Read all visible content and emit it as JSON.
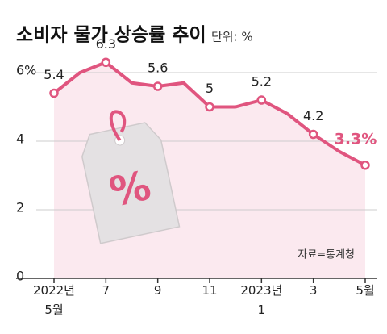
{
  "chart_data": {
    "type": "line",
    "title": "소비자 물가 상승률 추이",
    "subtitle": "단위: %",
    "annotation": "자료=통계청",
    "categories": [
      "2022년\n5월",
      null,
      "7",
      null,
      "9",
      null,
      "11",
      null,
      "2023년\n1",
      null,
      "3",
      null,
      "5월"
    ],
    "series": [
      {
        "name": "소비자 물가 상승률",
        "color": "#e0557f",
        "values": [
          5.4,
          6.0,
          6.3,
          5.7,
          5.6,
          5.7,
          5.0,
          5.0,
          5.2,
          4.8,
          4.2,
          3.7,
          3.3
        ],
        "value_labels": [
          "5.4",
          null,
          "6.3",
          null,
          "5.6",
          null,
          "5",
          null,
          "5.2",
          null,
          "4.2",
          null,
          "3.3%"
        ]
      }
    ],
    "area_color": "#fbe9ef",
    "ylim": [
      0,
      7
    ],
    "yticks": [
      0,
      2,
      4,
      {
        "value": 6,
        "label": "6%"
      }
    ],
    "grid": true
  }
}
